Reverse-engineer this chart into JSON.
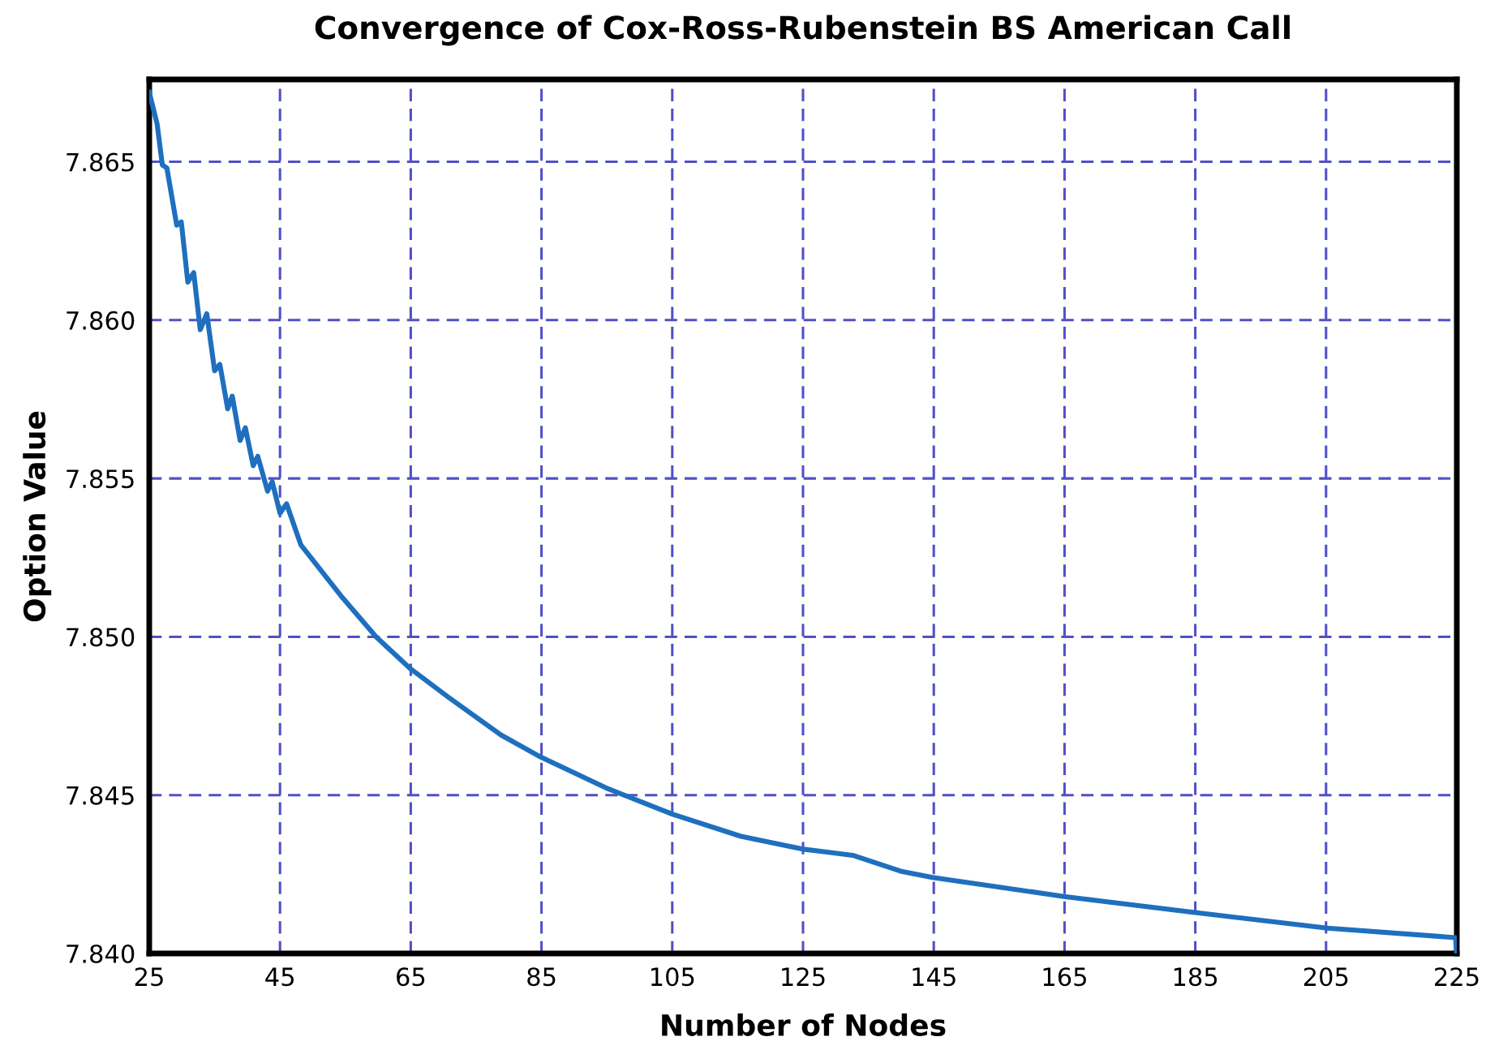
{
  "chart_data": {
    "type": "line",
    "title": "Convergence of Cox-Ross-Rubenstein BS American Call",
    "xlabel": "Number of Nodes",
    "ylabel": "Option Value",
    "x": [
      25,
      26.2,
      27,
      27.7,
      29.2,
      29.9,
      30.9,
      31.8,
      32.8,
      33.8,
      35,
      35.8,
      37,
      37.7,
      38.9,
      39.7,
      40.9,
      41.6,
      43.1,
      43.8,
      45,
      46,
      48.2,
      54.3,
      59.7,
      64.9,
      70.7,
      78.8,
      84.9,
      95.2,
      105,
      115.5,
      124.8,
      132.6,
      139.9,
      144.8,
      164.9,
      184.7,
      205.2,
      224.8,
      225
    ],
    "series": [
      {
        "color": "#1f6fbf",
        "values": [
          7.8672,
          7.8662,
          7.8649,
          7.8648,
          7.863,
          7.8631,
          7.8612,
          7.8615,
          7.8597,
          7.8602,
          7.8584,
          7.8586,
          7.8572,
          7.8576,
          7.8562,
          7.8566,
          7.8554,
          7.8557,
          7.8546,
          7.8549,
          7.8539,
          7.8542,
          7.8529,
          7.8513,
          7.85,
          7.849,
          7.8481,
          7.8469,
          7.8462,
          7.8452,
          7.8444,
          7.8437,
          7.8433,
          7.8431,
          7.8426,
          7.8424,
          7.8418,
          7.8413,
          7.8408,
          7.8405,
          7.84
        ]
      }
    ],
    "xlim": [
      25,
      225
    ],
    "xticks": [
      25,
      45,
      65,
      85,
      105,
      125,
      145,
      165,
      185,
      205,
      225
    ],
    "ylim": [
      7.84,
      7.8676
    ],
    "yticks": [
      {
        "value": 7.84,
        "label": "7.840"
      },
      {
        "value": 7.845,
        "label": "7.845"
      },
      {
        "value": 7.85,
        "label": "7.850"
      },
      {
        "value": 7.855,
        "label": "7.855"
      },
      {
        "value": 7.86,
        "label": "7.860"
      },
      {
        "value": 7.865,
        "label": "7.865"
      }
    ],
    "grid": true,
    "marker": "none",
    "line_style": "solid",
    "legend": false
  }
}
